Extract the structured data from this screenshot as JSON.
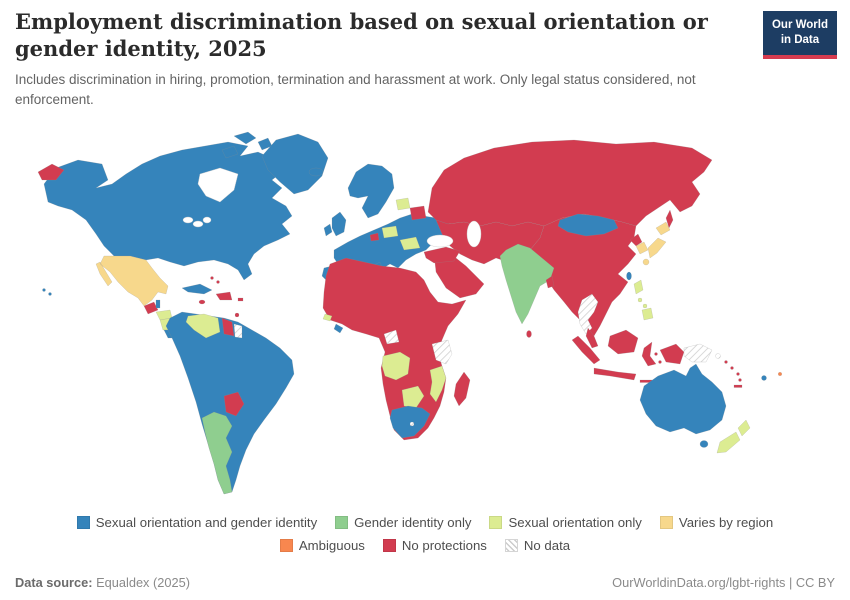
{
  "header": {
    "title": "Employment discrimination based on sexual orientation or gender identity, 2025",
    "subtitle": "Includes discrimination in hiring, promotion, termination and harassment at work. Only legal status considered, not enforcement."
  },
  "logo": {
    "line1": "Our World",
    "line2": "in Data"
  },
  "legend": {
    "items": [
      {
        "id": "soc_gi",
        "label": "Sexual orientation and gender identity",
        "color": "#3584BB"
      },
      {
        "id": "gi_only",
        "label": "Gender identity only",
        "color": "#8FCE8F"
      },
      {
        "id": "so_only",
        "label": "Sexual orientation only",
        "color": "#DCEC92"
      },
      {
        "id": "varies",
        "label": "Varies by region",
        "color": "#F7D88C"
      },
      {
        "id": "ambiguous",
        "label": "Ambiguous",
        "color": "#F8874F"
      },
      {
        "id": "none",
        "label": "No protections",
        "color": "#D23C50"
      },
      {
        "id": "nodata",
        "label": "No data",
        "color": "hatch"
      }
    ]
  },
  "footer": {
    "datasource_label": "Data source:",
    "datasource_value": "Equaldex (2025)",
    "rights": "OurWorldinData.org/lgbt-rights | CC BY"
  },
  "chart_data": {
    "type": "choropleth",
    "title": "Employment discrimination based on sexual orientation or gender identity, 2025",
    "subtitle": "Includes discrimination in hiring, promotion, termination and harassment at work. Only legal status considered, not enforcement.",
    "source": "Equaldex (2025)",
    "legend_position": "bottom",
    "categories": [
      "Sexual orientation and gender identity",
      "Gender identity only",
      "Sexual orientation only",
      "Varies by region",
      "Ambiguous",
      "No protections",
      "No data"
    ],
    "countries_by_category": {
      "Sexual orientation and gender identity": [
        "Canada",
        "United States",
        "Greenland",
        "Iceland",
        "Cuba",
        "Belize",
        "Costa Rica",
        "Colombia",
        "Ecuador",
        "Peru",
        "Brazil",
        "Bolivia",
        "Chile",
        "Uruguay",
        "United Kingdom",
        "Ireland",
        "France",
        "Spain",
        "Portugal",
        "Germany",
        "Norway",
        "Sweden",
        "Finland",
        "Denmark",
        "Poland",
        "Ukraine",
        "Italy",
        "Greece",
        "Liberia",
        "South Africa",
        "Mongolia",
        "Taiwan",
        "Australia",
        "Fiji"
      ],
      "Gender identity only": [
        "Argentina",
        "India",
        "Pakistan",
        "Nepal"
      ],
      "Sexual orientation only": [
        "Venezuela",
        "Honduras",
        "Nicaragua",
        "Latvia",
        "Czechia",
        "Austria",
        "Romania",
        "Guinea-Bissau",
        "Angola",
        "Mozambique",
        "Botswana",
        "Philippines",
        "New Zealand"
      ],
      "Varies by region": [
        "Mexico",
        "Japan",
        "South Korea"
      ],
      "Ambiguous": [
        "Small Pacific island states"
      ],
      "No protections": [
        "Russia",
        "Belarus",
        "Switzerland",
        "Turkey",
        "China",
        "North Korea",
        "Myanmar",
        "Vietnam",
        "Cambodia",
        "Malaysia",
        "Indonesia",
        "Sri Lanka",
        "Bangladesh",
        "Middle East",
        "Central Asia",
        "most of Africa",
        "Madagascar",
        "Guatemala",
        "Panama",
        "Jamaica",
        "Haiti",
        "Dominican Republic",
        "Bahamas",
        "Guyana",
        "Paraguay",
        "Vanuatu",
        "New Caledonia"
      ],
      "No data": [
        "Suriname",
        "Thailand",
        "Kenya",
        "Equatorial Guinea / Cameroon region",
        "Papua New Guinea",
        "Solomon Islands"
      ]
    }
  },
  "map": {
    "regions": {
      "canada-usa": "soc_gi",
      "arctic-islands-1": "soc_gi",
      "arctic-islands-2": "soc_gi",
      "arctic-islands-3": "soc_gi",
      "greenland": "soc_gi",
      "iceland": "soc_gi",
      "chukotka": "none",
      "hawaii-1": "soc_gi",
      "hawaii-2": "soc_gi",
      "mexico": "varies",
      "guatemala": "none",
      "belize": "soc_gi",
      "honduras": "so_only",
      "nicaragua": "so_only",
      "costa-rica": "soc_gi",
      "panama": "none",
      "cuba": "soc_gi",
      "jamaica": "none",
      "hispaniola": "none",
      "bahamas-1": "none",
      "bahamas-2": "none",
      "puerto-rico": "none",
      "trinidad": "none",
      "south-america": "soc_gi",
      "venezuela": "so_only",
      "guyana": "none",
      "suriname": "nodata",
      "paraguay": "none",
      "argentina": "gi_only",
      "scandinavia": "soc_gi",
      "uk": "soc_gi",
      "ireland": "soc_gi",
      "europe-mainland": "soc_gi",
      "iberia": "soc_gi",
      "italy": "soc_gi",
      "sicily": "soc_gi",
      "greece": "soc_gi",
      "latvia": "so_only",
      "belarus": "none",
      "czech-austria": "so_only",
      "switzerland": "none",
      "romania": "so_only",
      "turkey": "none",
      "russia": "none",
      "sakhalin": "none",
      "central-asia": "none",
      "arabia": "none",
      "africa": "none",
      "liberia": "soc_gi",
      "guinea-bissau": "so_only",
      "cameroon-region": "nodata",
      "kenya-region": "nodata",
      "angola": "so_only",
      "mozambique": "so_only",
      "botswana": "so_only",
      "south-africa": "soc_gi",
      "lesotho": "nodata",
      "madagascar": "none",
      "india": "gi_only",
      "bangladesh": "none",
      "sri-lanka": "none",
      "mongolia": "soc_gi",
      "china": "none",
      "north-korea": "none",
      "south-korea": "varies",
      "japan-hokkaido": "varies",
      "japan-honshu": "varies",
      "japan-kyushu": "varies",
      "taiwan": "soc_gi",
      "thailand": "nodata",
      "malay-peninsula": "none",
      "borneo": "none",
      "sumatra": "none",
      "java": "none",
      "sulawesi": "none",
      "lesser-sunda": "none",
      "moluccas-1": "none",
      "moluccas-2": "none",
      "west-papua": "none",
      "png": "nodata",
      "philippines-luzon": "so_only",
      "philippines-visayas-1": "so_only",
      "philippines-visayas-2": "so_only",
      "philippines-mindanao": "so_only",
      "solomon-hatch": "nodata",
      "solomon-1": "none",
      "solomon-2": "none",
      "vanuatu-1": "none",
      "vanuatu-2": "none",
      "new-caledonia": "none",
      "fiji": "soc_gi",
      "pacific-ambiguous": "ambiguous",
      "australia": "soc_gi",
      "tasmania": "soc_gi",
      "nz-north": "so_only",
      "nz-south": "so_only"
    }
  }
}
